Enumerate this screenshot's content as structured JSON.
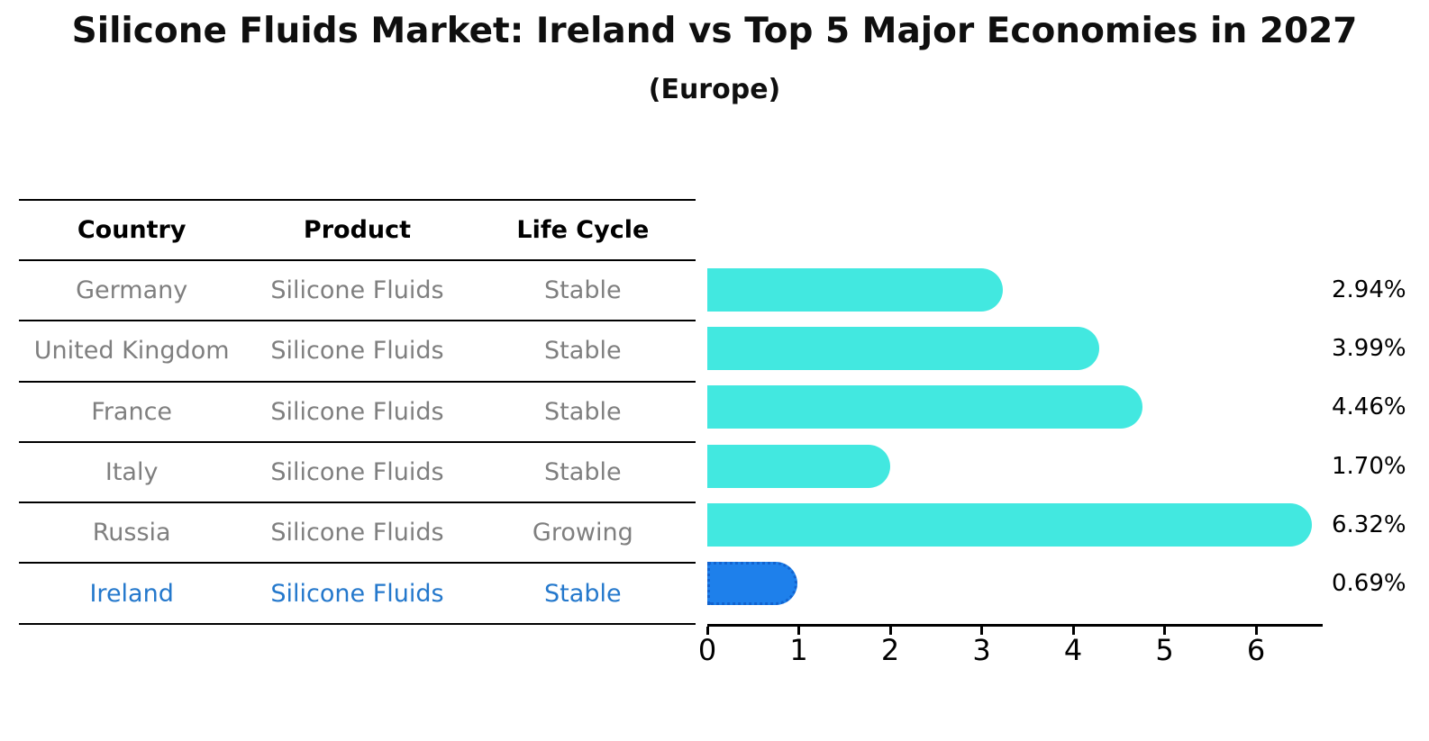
{
  "title": "Silicone Fluids Market: Ireland vs Top 5 Major Economies in 2027",
  "subtitle": "(Europe)",
  "table": {
    "headers": [
      "Country",
      "Product",
      "Life Cycle"
    ],
    "rows": [
      {
        "country": "Germany",
        "product": "Silicone Fluids",
        "life_cycle": "Stable",
        "highlight": false
      },
      {
        "country": "United Kingdom",
        "product": "Silicone Fluids",
        "life_cycle": "Stable",
        "highlight": false
      },
      {
        "country": "France",
        "product": "Silicone Fluids",
        "life_cycle": "Stable",
        "highlight": false
      },
      {
        "country": "Italy",
        "product": "Silicone Fluids",
        "life_cycle": "Stable",
        "highlight": false
      },
      {
        "country": "Russia",
        "product": "Silicone Fluids",
        "life_cycle": "Growing",
        "highlight": false
      },
      {
        "country": "Ireland",
        "product": "Silicone Fluids",
        "life_cycle": "Stable",
        "highlight": true
      }
    ]
  },
  "chart_data": {
    "type": "bar",
    "orientation": "horizontal",
    "categories": [
      "Germany",
      "United Kingdom",
      "France",
      "Italy",
      "Russia",
      "Ireland"
    ],
    "values": [
      2.94,
      3.99,
      4.46,
      1.7,
      6.32,
      0.69
    ],
    "value_labels": [
      "2.94%",
      "3.99%",
      "4.46%",
      "1.70%",
      "6.32%",
      "0.69%"
    ],
    "x_ticks": [
      0,
      1,
      2,
      3,
      4,
      5,
      6
    ],
    "xlim": [
      0,
      6.7
    ],
    "grid": false,
    "legend": false,
    "highlight_index": 5
  },
  "colors": {
    "bar_default": "#42e8e0",
    "bar_highlight": "#1e80eb",
    "bar_highlight_border": "#1263cf",
    "table_text": "#7f7f7f",
    "table_text_highlight": "#2478cc",
    "heading_text": "#000000"
  }
}
